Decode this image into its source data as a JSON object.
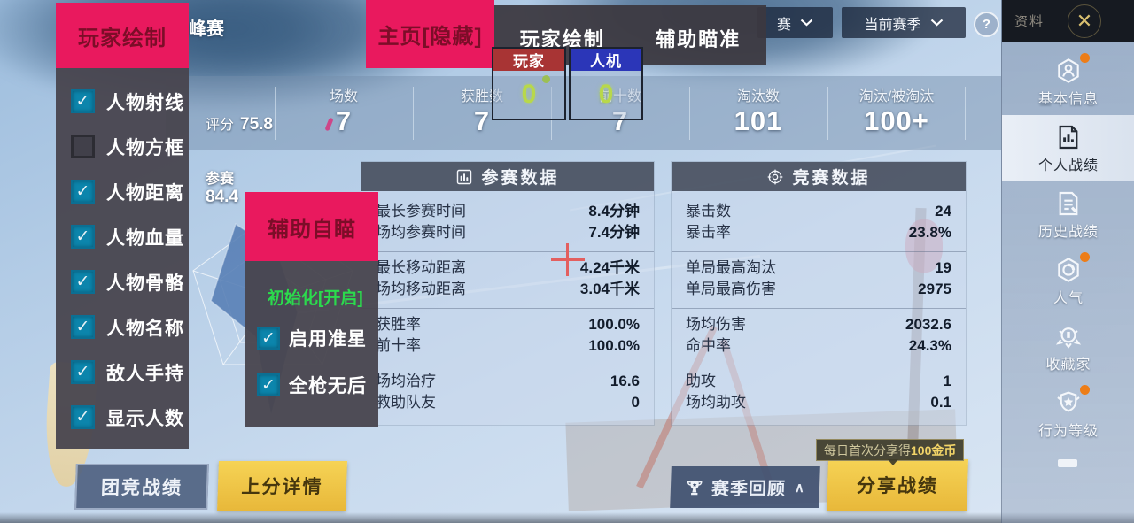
{
  "page_title": "峰赛",
  "rating": {
    "label": "评分",
    "value": "75.8"
  },
  "top_stats": [
    {
      "label": "场数",
      "value": "7"
    },
    {
      "label": "获胜数",
      "value": "7"
    },
    {
      "label": "前十数",
      "value": "7"
    },
    {
      "label": "淘汰数",
      "value": "101"
    },
    {
      "label": "淘汰/被淘汰",
      "value": "100+"
    }
  ],
  "radar": {
    "label": "参赛",
    "value": "84.4"
  },
  "dropdowns": [
    {
      "value": "赛"
    },
    {
      "value": "当前赛季"
    }
  ],
  "help_label": "?",
  "sidebar": {
    "header": "资料",
    "close_icon": "✕",
    "items": [
      {
        "label": "基本信息",
        "icon": "profile-hex-icon",
        "badge": true,
        "active": false
      },
      {
        "label": "个人战绩",
        "icon": "stats-doc-icon",
        "badge": false,
        "active": true
      },
      {
        "label": "历史战绩",
        "icon": "history-doc-icon",
        "badge": false,
        "active": false
      },
      {
        "label": "人气",
        "icon": "popularity-icon",
        "badge": true,
        "active": false
      },
      {
        "label": "收藏家",
        "icon": "collector-badge-icon",
        "badge": false,
        "active": false
      },
      {
        "label": "行为等级",
        "icon": "conduct-badge-icon",
        "badge": true,
        "active": false
      }
    ]
  },
  "panels": [
    {
      "title": "参赛数据",
      "icon": "bar-chart-icon",
      "groups": [
        [
          {
            "label": "最长参赛时间",
            "value": "8.4分钟"
          },
          {
            "label": "场均参赛时间",
            "value": "7.4分钟"
          }
        ],
        [
          {
            "label": "最长移动距离",
            "value": "4.24千米"
          },
          {
            "label": "场均移动距离",
            "value": "3.04千米"
          }
        ],
        [
          {
            "label": "获胜率",
            "value": "100.0%"
          },
          {
            "label": "前十率",
            "value": "100.0%"
          }
        ],
        [
          {
            "label": "场均治疗",
            "value": "16.6"
          },
          {
            "label": "救助队友",
            "value": "0"
          }
        ]
      ]
    },
    {
      "title": "竞赛数据",
      "icon": "crosshair-icon",
      "groups": [
        [
          {
            "label": "暴击数",
            "value": "24"
          },
          {
            "label": "暴击率",
            "value": "23.8%"
          }
        ],
        [
          {
            "label": "单局最高淘汰",
            "value": "19"
          },
          {
            "label": "单局最高伤害",
            "value": "2975"
          }
        ],
        [
          {
            "label": "场均伤害",
            "value": "2032.6"
          },
          {
            "label": "命中率",
            "value": "24.3%"
          }
        ],
        [
          {
            "label": "助攻",
            "value": "1"
          },
          {
            "label": "场均助攻",
            "value": "0.1"
          }
        ]
      ]
    }
  ],
  "buttons": {
    "team_record": "团竞战绩",
    "rank_details": "上分详情",
    "season_review": "赛季回顾",
    "season_review_chevron": "∧",
    "share_record": "分享战绩"
  },
  "tooltip": {
    "text": "每日首次分享得",
    "highlight": "100金币"
  },
  "cheat": {
    "esp_panel": {
      "title": "玩家绘制",
      "items": [
        {
          "label": "人物射线",
          "checked": true
        },
        {
          "label": "人物方框",
          "checked": false
        },
        {
          "label": "人物距离",
          "checked": true
        },
        {
          "label": "人物血量",
          "checked": true
        },
        {
          "label": "人物骨骼",
          "checked": true
        },
        {
          "label": "人物名称",
          "checked": true
        },
        {
          "label": "敌人手持",
          "checked": true
        },
        {
          "label": "显示人数",
          "checked": true
        }
      ]
    },
    "home_button": "主页[隐藏]",
    "menu_tabs": [
      "玩家绘制",
      "辅助瞄准"
    ],
    "counters": [
      {
        "label": "玩家",
        "value": "0",
        "header_color": "#a83434"
      },
      {
        "label": "人机",
        "value": "0",
        "header_color": "#2b36b8"
      }
    ],
    "aim_panel": {
      "title": "辅助自瞄",
      "status": "初始化[开启]",
      "items": [
        {
          "label": "启用准星",
          "checked": true
        },
        {
          "label": "全枪无后",
          "checked": true
        }
      ]
    }
  },
  "colors": {
    "accent_pink": "#e9195e",
    "checkbox_teal": "#0c85ac",
    "counter_green": "#b8d84a",
    "status_green": "#2bdb4d",
    "gold_button": "#eec243",
    "close_gold": "#d9c070",
    "crosshair_red": "#e35f5f",
    "notify_orange": "#ed7d18"
  }
}
